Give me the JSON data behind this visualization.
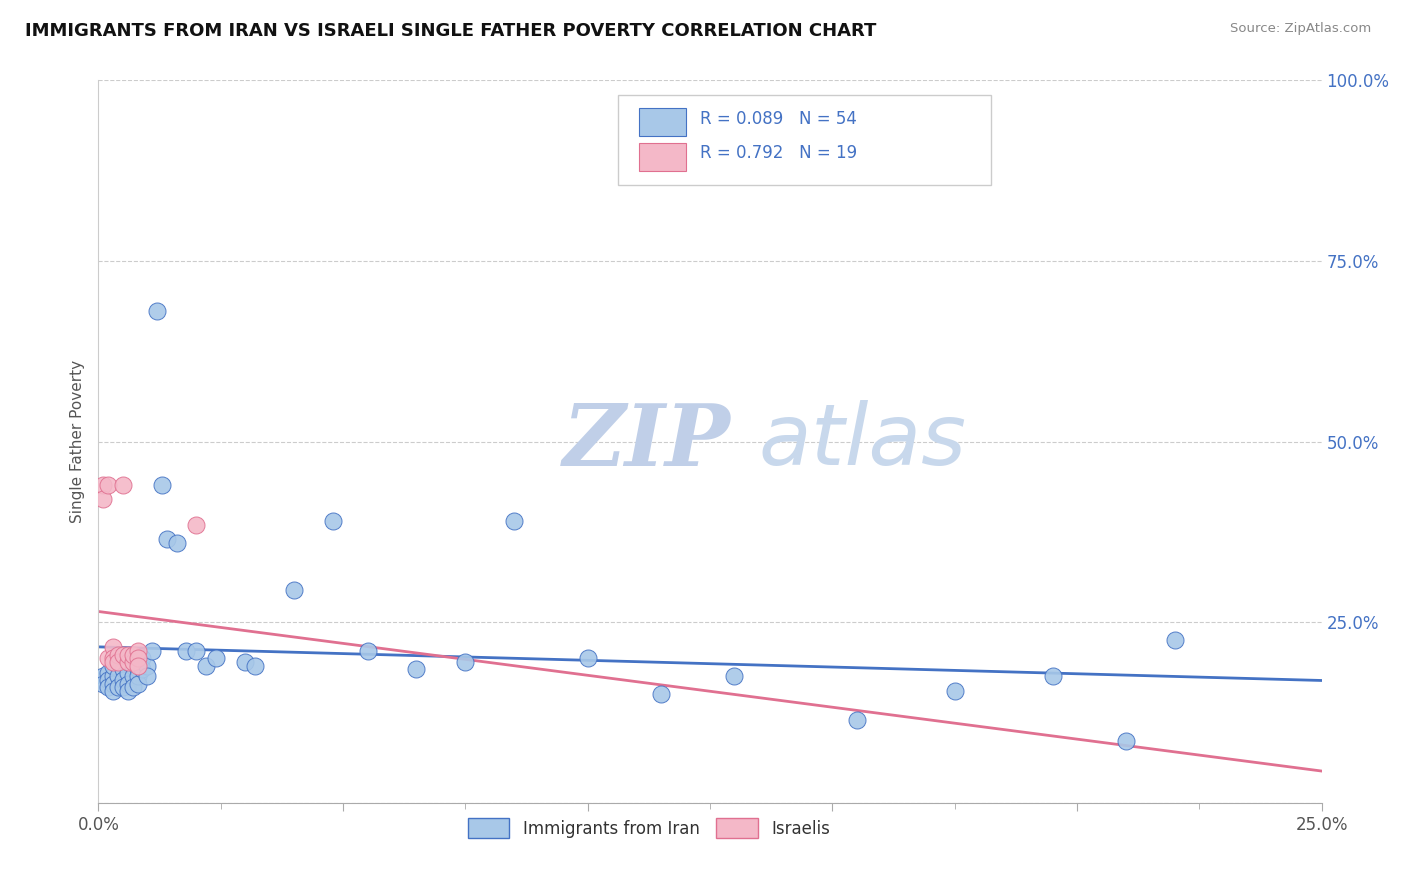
{
  "title": "IMMIGRANTS FROM IRAN VS ISRAELI SINGLE FATHER POVERTY CORRELATION CHART",
  "source": "Source: ZipAtlas.com",
  "ylabel": "Single Father Poverty",
  "legend_label1": "Immigrants from Iran",
  "legend_label2": "Israelis",
  "R1": 0.089,
  "N1": 54,
  "R2": 0.792,
  "N2": 19,
  "color_blue": "#a8c8e8",
  "color_pink": "#f4b8c8",
  "color_blue_dark": "#4472c4",
  "color_pink_dark": "#e07090",
  "watermark_zip": "ZIP",
  "watermark_atlas": "atlas",
  "watermark_color": "#d0dff0",
  "blue_scatter_x": [
    0.001,
    0.001,
    0.002,
    0.002,
    0.002,
    0.003,
    0.003,
    0.003,
    0.003,
    0.004,
    0.004,
    0.005,
    0.005,
    0.005,
    0.005,
    0.006,
    0.006,
    0.006,
    0.006,
    0.007,
    0.007,
    0.007,
    0.008,
    0.008,
    0.008,
    0.009,
    0.009,
    0.01,
    0.01,
    0.011,
    0.012,
    0.013,
    0.014,
    0.016,
    0.018,
    0.02,
    0.022,
    0.024,
    0.03,
    0.032,
    0.04,
    0.048,
    0.055,
    0.065,
    0.075,
    0.085,
    0.1,
    0.115,
    0.13,
    0.155,
    0.175,
    0.195,
    0.21,
    0.22
  ],
  "blue_scatter_y": [
    0.175,
    0.165,
    0.18,
    0.17,
    0.16,
    0.175,
    0.165,
    0.155,
    0.19,
    0.175,
    0.16,
    0.185,
    0.17,
    0.16,
    0.2,
    0.18,
    0.165,
    0.155,
    0.195,
    0.19,
    0.175,
    0.16,
    0.185,
    0.175,
    0.165,
    0.2,
    0.185,
    0.19,
    0.175,
    0.21,
    0.68,
    0.44,
    0.365,
    0.36,
    0.21,
    0.21,
    0.19,
    0.2,
    0.195,
    0.19,
    0.295,
    0.39,
    0.21,
    0.185,
    0.195,
    0.39,
    0.2,
    0.15,
    0.175,
    0.115,
    0.155,
    0.175,
    0.085,
    0.225
  ],
  "pink_scatter_x": [
    0.001,
    0.001,
    0.002,
    0.002,
    0.003,
    0.003,
    0.003,
    0.004,
    0.004,
    0.005,
    0.005,
    0.006,
    0.006,
    0.007,
    0.007,
    0.008,
    0.008,
    0.008,
    0.02
  ],
  "pink_scatter_y": [
    0.44,
    0.42,
    0.44,
    0.2,
    0.215,
    0.2,
    0.195,
    0.205,
    0.195,
    0.44,
    0.205,
    0.195,
    0.205,
    0.195,
    0.205,
    0.21,
    0.2,
    0.19,
    0.385
  ],
  "xlim": [
    0.0,
    0.25
  ],
  "ylim": [
    0.0,
    1.0
  ],
  "xticks": [
    0.0,
    0.05,
    0.1,
    0.15,
    0.2,
    0.25
  ],
  "yticks": [
    0.0,
    0.25,
    0.5,
    0.75,
    1.0
  ],
  "figsize": [
    14.06,
    8.92
  ],
  "dpi": 100
}
